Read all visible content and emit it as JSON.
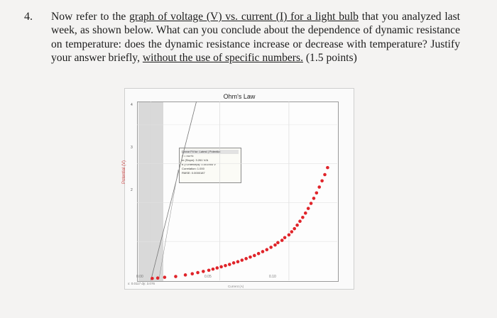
{
  "question": {
    "number": "4.",
    "text_1": "Now refer to the ",
    "text_2": "graph of voltage (V) vs. current (I) for a light bulb",
    "text_3": " that you analyzed last week, as shown below.  What can you conclude about the dependence of dynamic resistance on temperature:  does the dynamic resistance increase or decrease with temperature? Justify your answer briefly, ",
    "text_4": "without the use of specific numbers.",
    "text_5": "  (1.5 points)"
  },
  "chart": {
    "title": "Ohm's Law",
    "y_axis_label": "Potential (V)",
    "x_axis_label": "Current (A)",
    "y_ticks": [
      "4",
      "3",
      "2"
    ],
    "x_ticks": [
      "0.00",
      "0.05",
      "0.10"
    ],
    "status": "x: 0.0117  dy: 3.076",
    "fit_box": {
      "title": "Linear Fit for:  Latest | Potential",
      "equation": "y = mx+b",
      "slope": "m (Slope):  3.261 V/A",
      "intercept": "b (Y-Intercept):  0.001954 V",
      "correlation": "Correlation:  1.000",
      "rmse": "RMSE:  0.0000187"
    },
    "point_color": "#e0242a"
  },
  "chart_data": {
    "type": "scatter",
    "title": "Ohm's Law",
    "xlabel": "Current (A)",
    "ylabel": "Potential (V)",
    "xlim": [
      -0.01,
      0.135
    ],
    "ylim": [
      0,
      4.6
    ],
    "grid": true,
    "series": [
      {
        "x": [
          0.001,
          0.005,
          0.01,
          0.018,
          0.025,
          0.03,
          0.034,
          0.038,
          0.042,
          0.045,
          0.048,
          0.051,
          0.054,
          0.057,
          0.06,
          0.063,
          0.066,
          0.069,
          0.072,
          0.075,
          0.078,
          0.081,
          0.084,
          0.087,
          0.09,
          0.092,
          0.095,
          0.097,
          0.1,
          0.102,
          0.104,
          0.106,
          0.108,
          0.11,
          0.112,
          0.114,
          0.116,
          0.118,
          0.12,
          0.122,
          0.124,
          0.126,
          0.128
        ],
        "y": [
          0.05,
          0.06,
          0.08,
          0.1,
          0.14,
          0.17,
          0.2,
          0.23,
          0.26,
          0.29,
          0.32,
          0.35,
          0.38,
          0.41,
          0.45,
          0.48,
          0.52,
          0.56,
          0.6,
          0.64,
          0.69,
          0.74,
          0.79,
          0.85,
          0.91,
          0.97,
          1.03,
          1.1,
          1.17,
          1.25,
          1.33,
          1.42,
          1.52,
          1.62,
          1.73,
          1.85,
          1.98,
          2.11,
          2.25,
          2.4,
          2.56,
          2.72,
          2.9
        ]
      }
    ]
  }
}
